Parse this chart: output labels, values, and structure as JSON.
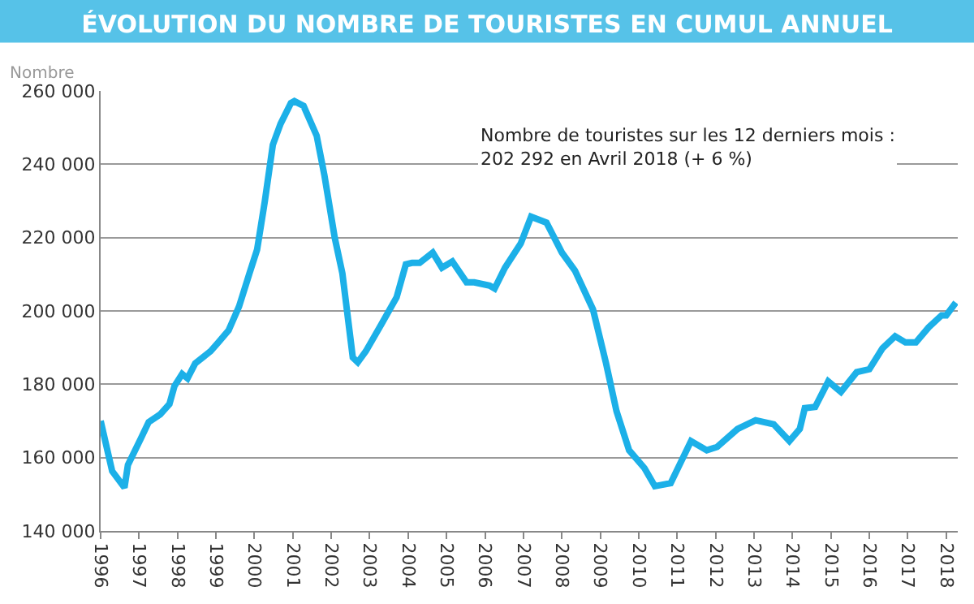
{
  "chart_data": {
    "type": "line",
    "title": "ÉVOLUTION DU NOMBRE DE TOURISTES EN CUMUL ANNUEL",
    "ylabel": "Nombre",
    "annotations": [
      "Nombre de touristes sur les 12 derniers mois : 202 292 en Avril 2018 (+ 6 %)"
    ],
    "x": [
      1996.0,
      1996.3,
      1996.62,
      1996.71,
      1997.05,
      1997.25,
      1997.55,
      1997.79,
      1997.92,
      1998.12,
      1998.26,
      1998.46,
      1998.86,
      1999.06,
      1999.33,
      1999.6,
      1999.87,
      2000.07,
      2000.27,
      2000.48,
      2000.68,
      2000.95,
      2001.04,
      2001.28,
      2001.62,
      2001.82,
      2002.09,
      2002.29,
      2002.56,
      2002.69,
      2002.9,
      2003.3,
      2003.7,
      2003.94,
      2004.1,
      2004.3,
      2004.64,
      2004.88,
      2005.15,
      2005.52,
      2005.72,
      2006.12,
      2006.25,
      2006.52,
      2006.93,
      2007.2,
      2007.6,
      2008.0,
      2008.34,
      2008.81,
      2009.15,
      2009.42,
      2009.75,
      2010.15,
      2010.42,
      2010.83,
      2011.36,
      2011.77,
      2012.04,
      2012.57,
      2013.04,
      2013.51,
      2013.92,
      2014.19,
      2014.32,
      2014.59,
      2014.93,
      2015.26,
      2015.67,
      2016.0,
      2016.34,
      2016.67,
      2016.94,
      2017.21,
      2017.54,
      2017.88,
      2018.0,
      2018.25
    ],
    "series": [
      {
        "color": "#1cb0e8",
        "values": [
          170000,
          156300,
          151800,
          158000,
          165300,
          169700,
          171800,
          174600,
          179500,
          182800,
          181600,
          185700,
          189000,
          191400,
          194700,
          201200,
          210200,
          216700,
          229800,
          245300,
          251000,
          256700,
          257200,
          255900,
          247800,
          237100,
          220000,
          210200,
          187300,
          186000,
          189000,
          196300,
          203700,
          212700,
          213100,
          213100,
          215900,
          211800,
          213500,
          207800,
          207800,
          206900,
          206100,
          211800,
          218400,
          225700,
          224100,
          215900,
          211000,
          200400,
          185700,
          172700,
          162000,
          157100,
          152200,
          153000,
          164500,
          162000,
          162900,
          167800,
          170200,
          169100,
          164500,
          167800,
          173500,
          173800,
          180800,
          177900,
          183300,
          184100,
          189800,
          193100,
          191400,
          191400,
          195500,
          198800,
          198800,
          202300
        ]
      }
    ],
    "xlim": [
      1996,
      2018.3
    ],
    "xticks": [
      1996,
      1997,
      1998,
      1999,
      2000,
      2001,
      2002,
      2003,
      2004,
      2005,
      2006,
      2007,
      2008,
      2009,
      2010,
      2011,
      2012,
      2013,
      2014,
      2015,
      2016,
      2017,
      2018
    ],
    "ylim": [
      140000,
      260000
    ],
    "yticks": [
      {
        "value": 140000,
        "label": "140 000"
      },
      {
        "value": 160000,
        "label": "160 000"
      },
      {
        "value": 180000,
        "label": "180 000"
      },
      {
        "value": 200000,
        "label": "200 000"
      },
      {
        "value": 220000,
        "label": "220 000"
      },
      {
        "value": 240000,
        "label": "240 000"
      },
      {
        "value": 260000,
        "label": "260 000"
      }
    ],
    "grid": "y",
    "marker": "none",
    "line_style": "solid"
  }
}
